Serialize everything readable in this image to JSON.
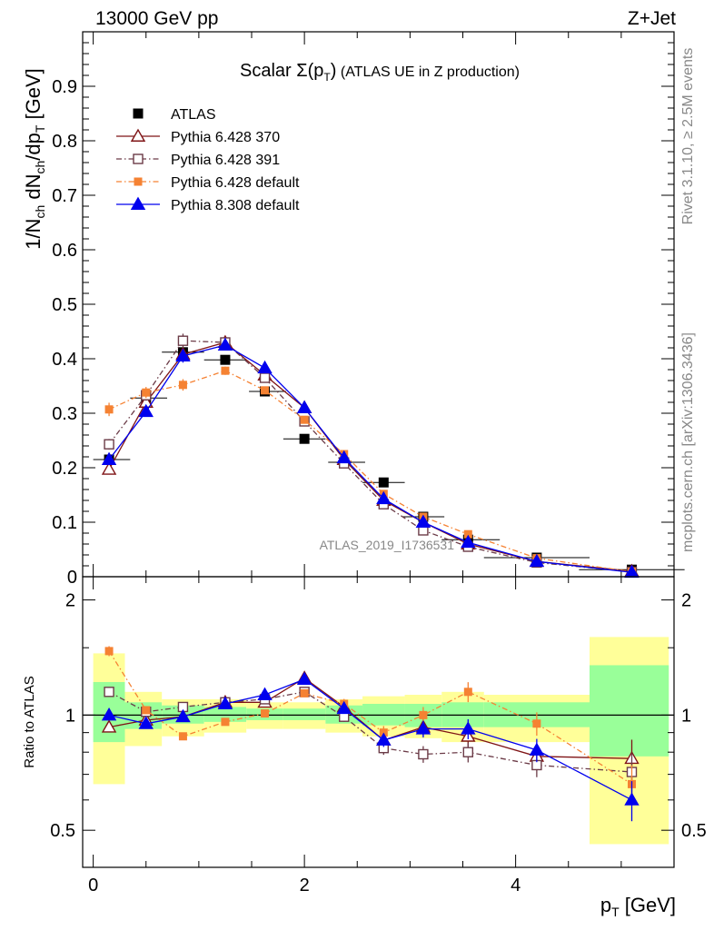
{
  "header": {
    "left": "13000 GeV pp",
    "right": "Z+Jet"
  },
  "side_labels": {
    "rivet": "Rivet 3.1.10, ≥ 2.5M events",
    "mcplots": "mcplots.cern.ch [arXiv:1306.3436]"
  },
  "colors": {
    "atlas": "#000000",
    "p370": "#7f1416",
    "p391": "#6b3b47",
    "p6def": "#f58233",
    "p8def": "#0000ee",
    "band_yellow": "#ffff99",
    "band_green": "#99ff99"
  },
  "chart_data": [
    {
      "type": "line",
      "title_main": "Scalar Σ(p",
      "title_sub": "T",
      "title_close": ")",
      "title_rest": " (ATLAS UE in Z production)",
      "ylabel": "1/N_ch dN_ch/dp_T [GeV]",
      "watermark": "ATLAS_2019_I1736531",
      "ylim": [
        0,
        1.0
      ],
      "xlim": [
        -0.1,
        5.5
      ],
      "yticks": [
        {
          "v": 0,
          "label": "0"
        },
        {
          "v": 0.1,
          "label": "0.1"
        },
        {
          "v": 0.2,
          "label": "0.2"
        },
        {
          "v": 0.3,
          "label": "0.3"
        },
        {
          "v": 0.4,
          "label": "0.4"
        },
        {
          "v": 0.5,
          "label": "0.5"
        },
        {
          "v": 0.6,
          "label": "0.6"
        },
        {
          "v": 0.7,
          "label": "0.7"
        },
        {
          "v": 0.8,
          "label": "0.8"
        },
        {
          "v": 0.9,
          "label": "0.9"
        }
      ],
      "x": [
        0.15,
        0.5,
        0.85,
        1.25,
        1.625,
        2.0,
        2.375,
        2.75,
        3.125,
        3.55,
        4.2,
        5.1
      ],
      "atlas": {
        "name": "ATLAS",
        "values": [
          0.215,
          0.328,
          0.412,
          0.398,
          0.34,
          0.253,
          0.21,
          0.173,
          0.11,
          0.068,
          0.035,
          0.013
        ],
        "xerr_lo": [
          0.15,
          0.15,
          0.2,
          0.2,
          0.15,
          0.2,
          0.15,
          0.2,
          0.2,
          0.25,
          0.5,
          0.5
        ],
        "xerr_hi": [
          0.2,
          0.2,
          0.2,
          0.2,
          0.2,
          0.2,
          0.2,
          0.2,
          0.2,
          0.3,
          0.5,
          0.5
        ]
      },
      "series": [
        {
          "name": "Pythia 6.428 370",
          "key": "p370",
          "marker": "tri-open",
          "dash": "",
          "values": [
            0.197,
            0.32,
            0.408,
            0.43,
            0.37,
            0.31,
            0.215,
            0.14,
            0.1,
            0.06,
            0.028,
            0.01
          ]
        },
        {
          "name": "Pythia 6.428 391",
          "key": "p391",
          "marker": "sq-open",
          "dash": "6,3,1.5,3",
          "values": [
            0.243,
            0.333,
            0.433,
            0.43,
            0.365,
            0.285,
            0.208,
            0.133,
            0.085,
            0.055,
            0.026,
            0.009
          ]
        },
        {
          "name": "Pythia 6.428 default",
          "key": "p6def",
          "marker": "sq-fill",
          "dash": "6,3,1.5,3",
          "values": [
            0.307,
            0.338,
            0.352,
            0.378,
            0.342,
            0.288,
            0.225,
            0.152,
            0.11,
            0.078,
            0.034,
            0.009
          ]
        },
        {
          "name": "Pythia 8.308 default",
          "key": "p8def",
          "marker": "tri-fill",
          "dash": "",
          "values": [
            0.215,
            0.303,
            0.405,
            0.425,
            0.383,
            0.31,
            0.218,
            0.143,
            0.1,
            0.063,
            0.028,
            0.008
          ]
        }
      ]
    },
    {
      "type": "line",
      "ylabel": "Ratio to ATLAS",
      "xlabel_main": "p",
      "xlabel_sub": "T",
      "xlabel_rest": " [GeV]",
      "ylim": [
        0.4,
        2.3
      ],
      "yticks": [
        {
          "v": 0.5,
          "label": "0.5"
        },
        {
          "v": 1,
          "label": "1"
        },
        {
          "v": 2,
          "label": "2"
        }
      ],
      "xticks": [
        {
          "v": 0,
          "label": "0"
        },
        {
          "v": 2,
          "label": "2"
        },
        {
          "v": 4,
          "label": "4"
        }
      ],
      "bands": [
        {
          "x0": 0.0,
          "x1": 0.3,
          "y_lo": 0.66,
          "y_hi": 1.45,
          "g_lo": 0.85,
          "g_hi": 1.22
        },
        {
          "x0": 0.3,
          "x1": 0.65,
          "y_lo": 0.83,
          "y_hi": 1.15,
          "g_lo": 0.92,
          "g_hi": 1.08
        },
        {
          "x0": 0.65,
          "x1": 1.05,
          "y_lo": 0.88,
          "y_hi": 1.1,
          "g_lo": 0.95,
          "g_hi": 1.06
        },
        {
          "x0": 1.05,
          "x1": 1.45,
          "y_lo": 0.9,
          "y_hi": 1.1,
          "g_lo": 0.96,
          "g_hi": 1.05
        },
        {
          "x0": 1.45,
          "x1": 1.8,
          "y_lo": 0.92,
          "y_hi": 1.08,
          "g_lo": 0.97,
          "g_hi": 1.04
        },
        {
          "x0": 1.8,
          "x1": 2.2,
          "y_lo": 0.92,
          "y_hi": 1.08,
          "g_lo": 0.97,
          "g_hi": 1.04
        },
        {
          "x0": 2.2,
          "x1": 2.55,
          "y_lo": 0.9,
          "y_hi": 1.1,
          "g_lo": 0.95,
          "g_hi": 1.06
        },
        {
          "x0": 2.55,
          "x1": 2.95,
          "y_lo": 0.88,
          "y_hi": 1.12,
          "g_lo": 0.94,
          "g_hi": 1.07
        },
        {
          "x0": 2.95,
          "x1": 3.3,
          "y_lo": 0.87,
          "y_hi": 1.13,
          "g_lo": 0.93,
          "g_hi": 1.07
        },
        {
          "x0": 3.3,
          "x1": 3.7,
          "y_lo": 0.85,
          "y_hi": 1.15,
          "g_lo": 0.93,
          "g_hi": 1.08
        },
        {
          "x0": 3.7,
          "x1": 4.7,
          "y_lo": 0.85,
          "y_hi": 1.13,
          "g_lo": 0.93,
          "g_hi": 1.08
        },
        {
          "x0": 4.7,
          "x1": 5.45,
          "y_lo": 0.46,
          "y_hi": 1.6,
          "g_lo": 0.78,
          "g_hi": 1.35
        }
      ],
      "series": [
        {
          "name": "Pythia 6.428 370",
          "key": "p370",
          "marker": "tri-open",
          "dash": "",
          "values": [
            0.93,
            0.97,
            0.99,
            1.08,
            1.08,
            1.25,
            1.05,
            0.86,
            0.93,
            0.88,
            0.78,
            0.77
          ]
        },
        {
          "name": "Pythia 6.428 391",
          "key": "p391",
          "marker": "sq-open",
          "dash": "6,3,1.5,3",
          "values": [
            1.15,
            1.02,
            1.05,
            1.08,
            1.1,
            1.15,
            0.99,
            0.82,
            0.79,
            0.8,
            0.74,
            0.71
          ]
        },
        {
          "name": "Pythia 6.428 default",
          "key": "p6def",
          "marker": "sq-fill",
          "dash": "6,3,1.5,3",
          "values": [
            1.47,
            1.03,
            0.88,
            0.96,
            1.01,
            1.14,
            1.07,
            0.9,
            1.0,
            1.15,
            0.95,
            0.66
          ]
        },
        {
          "name": "Pythia 8.308 default",
          "key": "p8def",
          "marker": "tri-fill",
          "dash": "",
          "values": [
            1.0,
            0.95,
            0.99,
            1.07,
            1.13,
            1.24,
            1.04,
            0.86,
            0.92,
            0.92,
            0.81,
            0.6
          ]
        }
      ]
    }
  ]
}
